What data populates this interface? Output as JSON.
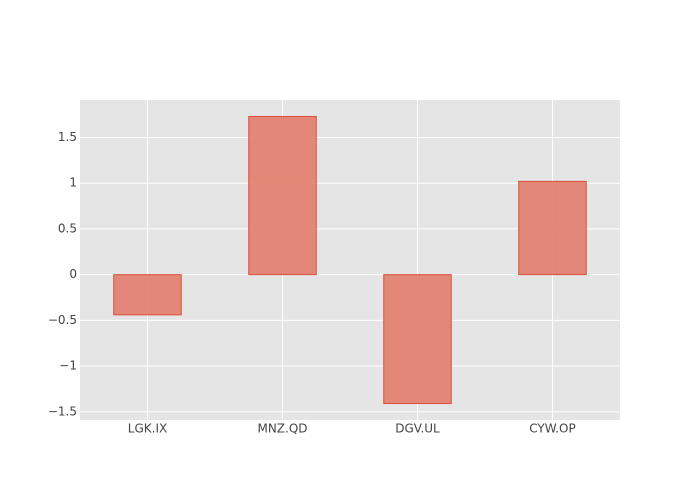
{
  "chart_data": {
    "type": "bar",
    "categories": [
      "LGK.IX",
      "MNZ.QD",
      "DGV.UL",
      "CYW.OP"
    ],
    "values": [
      -0.44,
      1.73,
      -1.41,
      1.02
    ],
    "color": "#e27c6b",
    "edge_color": "#d9503c",
    "ylim": [
      -1.59,
      1.91
    ],
    "yticks": [
      {
        "value": -1.5,
        "label": "−1.5"
      },
      {
        "value": -1,
        "label": "−1"
      },
      {
        "value": -0.5,
        "label": "−0.5"
      },
      0,
      0.5,
      1,
      1.5
    ],
    "grid": true
  }
}
